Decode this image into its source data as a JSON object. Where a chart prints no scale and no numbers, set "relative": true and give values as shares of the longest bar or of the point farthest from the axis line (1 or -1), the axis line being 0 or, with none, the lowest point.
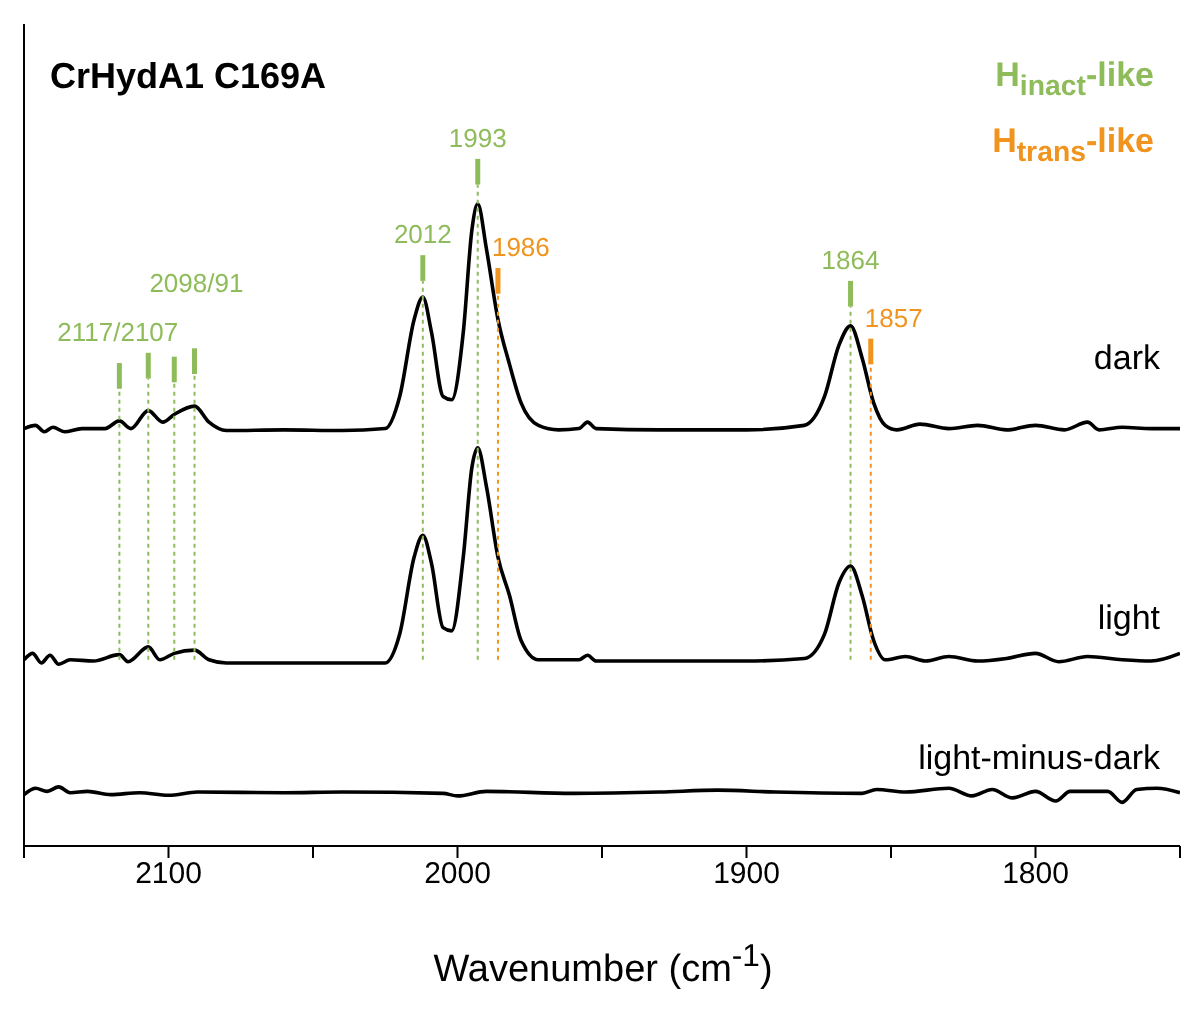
{
  "chart_data": {
    "type": "line",
    "relative": true,
    "title": "CrHydA1 C169A",
    "xlabel": "Wavenumber (cm$^{-1}$)",
    "xlim": [
      2150,
      1750
    ],
    "xticks": [
      {
        "value": 2150,
        "label": null
      },
      2100,
      {
        "value": 2050,
        "label": null
      },
      2000,
      {
        "value": 1950,
        "label": null
      },
      1900,
      {
        "value": 1850,
        "label": null
      },
      1800,
      {
        "value": 1750,
        "label": null
      }
    ],
    "series": [
      {
        "name": "dark",
        "color": "#000000",
        "x": [
          2150,
          2146,
          2143,
          2140,
          2136,
          2130,
          2122,
          2117,
          2113,
          2107,
          2102,
          2098,
          2091,
          2086,
          2080,
          2060,
          2040,
          2025,
          2020,
          2015,
          2012,
          2009,
          2005,
          2002,
          1998,
          1995,
          1993,
          1990,
          1986,
          1982,
          1978,
          1972,
          1965,
          1958,
          1955,
          1952,
          1930,
          1900,
          1880,
          1873,
          1868,
          1864,
          1860,
          1856,
          1852,
          1848,
          1840,
          1830,
          1820,
          1810,
          1800,
          1790,
          1782,
          1778,
          1770,
          1760,
          1750
        ],
        "values": [
          0.65,
          0.655,
          0.645,
          0.652,
          0.645,
          0.65,
          0.65,
          0.662,
          0.65,
          0.678,
          0.66,
          0.672,
          0.685,
          0.66,
          0.647,
          0.648,
          0.647,
          0.65,
          0.7,
          0.82,
          0.855,
          0.8,
          0.7,
          0.695,
          0.8,
          0.96,
          1.0,
          0.93,
          0.82,
          0.75,
          0.69,
          0.655,
          0.648,
          0.65,
          0.66,
          0.65,
          0.648,
          0.648,
          0.655,
          0.7,
          0.78,
          0.81,
          0.76,
          0.69,
          0.655,
          0.648,
          0.657,
          0.65,
          0.655,
          0.648,
          0.655,
          0.648,
          0.66,
          0.648,
          0.652,
          0.65,
          0.65
        ]
      },
      {
        "name": "light",
        "color": "#000000",
        "x": [
          2150,
          2147,
          2144,
          2141,
          2138,
          2134,
          2126,
          2117,
          2114,
          2107,
          2103,
          2098,
          2091,
          2086,
          2080,
          2050,
          2025,
          2020,
          2015,
          2012,
          2009,
          2005,
          2002,
          1998,
          1995,
          1993,
          1990,
          1986,
          1982,
          1978,
          1972,
          1958,
          1955,
          1952,
          1900,
          1880,
          1873,
          1868,
          1864,
          1860,
          1856,
          1852,
          1845,
          1838,
          1830,
          1820,
          1810,
          1800,
          1792,
          1782,
          1770,
          1760,
          1750
        ],
        "values": [
          0.29,
          0.3,
          0.285,
          0.297,
          0.283,
          0.29,
          0.288,
          0.298,
          0.287,
          0.31,
          0.29,
          0.3,
          0.305,
          0.29,
          0.285,
          0.285,
          0.285,
          0.33,
          0.45,
          0.484,
          0.44,
          0.34,
          0.335,
          0.45,
          0.59,
          0.62,
          0.56,
          0.45,
          0.39,
          0.32,
          0.29,
          0.29,
          0.297,
          0.288,
          0.288,
          0.292,
          0.33,
          0.41,
          0.436,
          0.39,
          0.32,
          0.29,
          0.295,
          0.288,
          0.295,
          0.288,
          0.292,
          0.3,
          0.287,
          0.295,
          0.29,
          0.288,
          0.3
        ]
      },
      {
        "name": "light-minus-dark",
        "color": "#000000",
        "x": [
          2150,
          2146,
          2142,
          2138,
          2134,
          2128,
          2120,
          2110,
          2100,
          2090,
          2060,
          2040,
          2005,
          2000,
          1990,
          1960,
          1930,
          1910,
          1890,
          1860,
          1855,
          1845,
          1830,
          1822,
          1815,
          1808,
          1800,
          1793,
          1788,
          1775,
          1770,
          1765,
          1758,
          1750
        ],
        "values": [
          0.08,
          0.09,
          0.085,
          0.092,
          0.083,
          0.085,
          0.08,
          0.083,
          0.079,
          0.084,
          0.083,
          0.084,
          0.082,
          0.078,
          0.085,
          0.082,
          0.084,
          0.087,
          0.084,
          0.082,
          0.088,
          0.084,
          0.09,
          0.078,
          0.088,
          0.075,
          0.085,
          0.07,
          0.085,
          0.085,
          0.068,
          0.088,
          0.09,
          0.083
        ]
      }
    ],
    "ref_lines": [
      {
        "axis": "x",
        "value": 2117,
        "color": "#8fbc5a",
        "line_style": "dotted"
      },
      {
        "axis": "x",
        "value": 2107,
        "color": "#8fbc5a",
        "line_style": "dotted"
      },
      {
        "axis": "x",
        "value": 2098,
        "color": "#8fbc5a",
        "line_style": "dotted"
      },
      {
        "axis": "x",
        "value": 2091,
        "color": "#8fbc5a",
        "line_style": "dotted"
      },
      {
        "axis": "x",
        "value": 2012,
        "color": "#8fbc5a",
        "line_style": "dotted"
      },
      {
        "axis": "x",
        "value": 1993,
        "color": "#8fbc5a",
        "line_style": "dotted"
      },
      {
        "axis": "x",
        "value": 1864,
        "color": "#8fbc5a",
        "line_style": "dotted"
      },
      {
        "axis": "x",
        "value": 1986,
        "color": "#f0941e",
        "line_style": "dotted"
      },
      {
        "axis": "x",
        "value": 1857,
        "color": "#f0941e",
        "line_style": "dotted"
      }
    ],
    "annotations": [
      "H$_{inact}$-like",
      "H$_{trans}$-like",
      "2117/2107",
      "2098/91",
      {
        "text": "2012",
        "x": 2012,
        "y": 0.88
      },
      {
        "text": "1993",
        "x": 1993,
        "y": 1.03
      },
      {
        "text": "1986",
        "x": 1986,
        "y": 0.86
      },
      {
        "text": "1864",
        "x": 1864,
        "y": 0.84
      },
      {
        "text": "1857",
        "x": 1857,
        "y": 0.75
      }
    ],
    "legend": false
  }
}
